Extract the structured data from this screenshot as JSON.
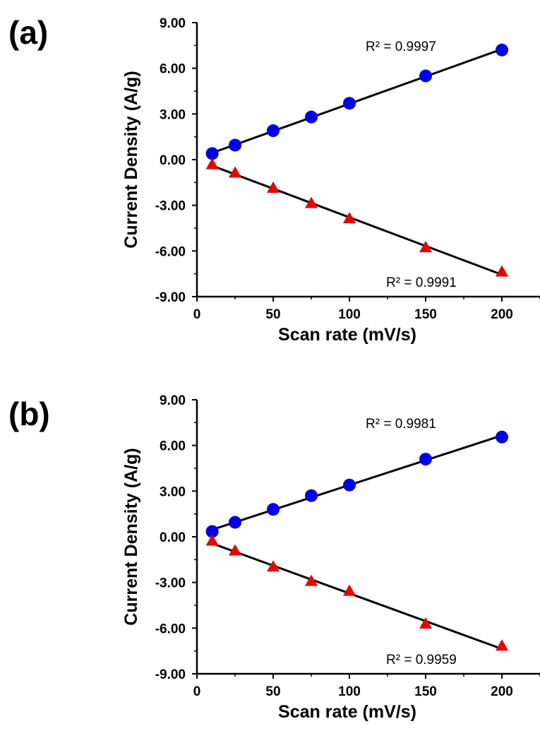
{
  "chart_data": [
    {
      "type": "scatter",
      "panel_label": "(a)",
      "xlabel": "Scan rate (mV/s)",
      "ylabel": "Current Density (A/g)",
      "xlim": [
        0,
        225
      ],
      "ylim": [
        -9,
        9
      ],
      "xticks": [
        0,
        50,
        100,
        150,
        200
      ],
      "yticks": [
        -9,
        -6,
        -3,
        0,
        3,
        6,
        9
      ],
      "xtick_labels": [
        "0",
        "50",
        "100",
        "150",
        "200"
      ],
      "ytick_labels": [
        "-9.00",
        "-6.00",
        "-3.00",
        "0.00",
        "3.00",
        "6.00",
        "9.00"
      ],
      "grid": false,
      "series": [
        {
          "marker": "circle",
          "color": "#0000ee",
          "x": [
            10,
            25,
            50,
            75,
            100,
            150,
            200
          ],
          "y": [
            0.4,
            0.95,
            1.9,
            2.8,
            3.7,
            5.5,
            7.2
          ],
          "trendline": {
            "r2_label": "R² = 0.9997"
          }
        },
        {
          "marker": "triangle",
          "color": "#ee0000",
          "x": [
            10,
            25,
            50,
            75,
            100,
            150,
            200
          ],
          "y": [
            -0.35,
            -0.9,
            -1.9,
            -2.9,
            -3.9,
            -5.8,
            -7.4
          ],
          "trendline": {
            "r2_label": "R² = 0.9991"
          }
        }
      ]
    },
    {
      "type": "scatter",
      "panel_label": "(b)",
      "xlabel": "Scan rate (mV/s)",
      "ylabel": "Current Density (A/g)",
      "xlim": [
        0,
        225
      ],
      "ylim": [
        -9,
        9
      ],
      "xticks": [
        0,
        50,
        100,
        150,
        200
      ],
      "yticks": [
        -9,
        -6,
        -3,
        0,
        3,
        6,
        9
      ],
      "xtick_labels": [
        "0",
        "50",
        "100",
        "150",
        "200"
      ],
      "ytick_labels": [
        "-9.00",
        "-6.00",
        "-3.00",
        "0.00",
        "3.00",
        "6.00",
        "9.00"
      ],
      "grid": false,
      "series": [
        {
          "marker": "circle",
          "color": "#0000ee",
          "x": [
            10,
            25,
            50,
            75,
            100,
            150,
            200
          ],
          "y": [
            0.35,
            0.95,
            1.8,
            2.7,
            3.4,
            5.1,
            6.55
          ],
          "trendline": {
            "r2_label": "R² = 0.9981"
          }
        },
        {
          "marker": "triangle",
          "color": "#ee0000",
          "x": [
            10,
            25,
            50,
            75,
            100,
            150,
            200
          ],
          "y": [
            -0.3,
            -0.95,
            -2.0,
            -2.95,
            -3.6,
            -5.75,
            -7.2
          ],
          "trendline": {
            "r2_label": "R² = 0.9959"
          }
        }
      ]
    }
  ]
}
